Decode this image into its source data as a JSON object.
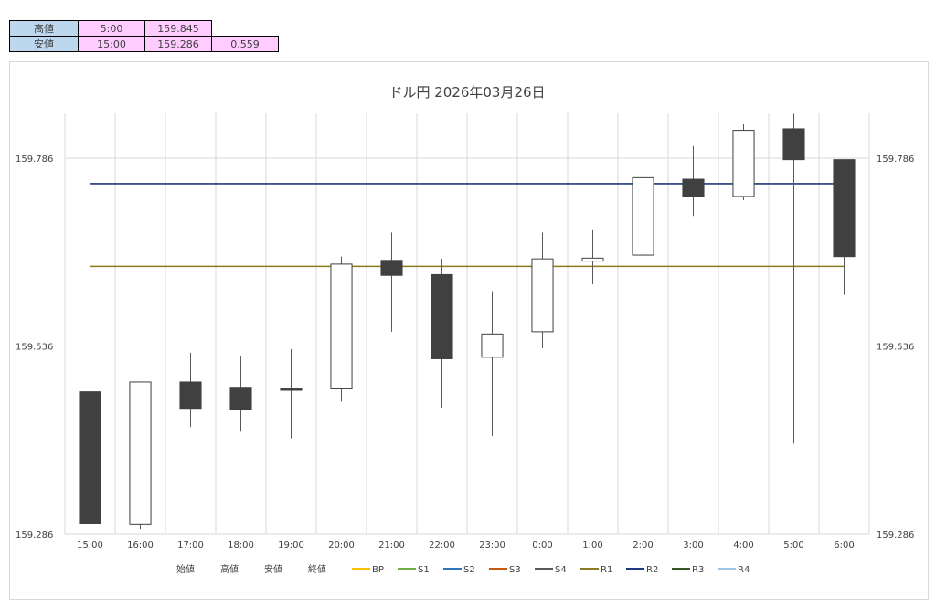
{
  "summary": {
    "high": {
      "label": "高値",
      "time": "5:00",
      "value": "159.845"
    },
    "low": {
      "label": "安値",
      "time": "15:00",
      "value": "159.286",
      "range": "0.559"
    }
  },
  "chart_data": {
    "type": "candlestick",
    "title": "ドル円 2026年03月26日",
    "ylim": [
      159.286,
      159.786
    ],
    "yticks": [
      "159.786",
      "159.536",
      "159.286"
    ],
    "ytick_values": [
      159.786,
      159.536,
      159.286
    ],
    "categories": [
      "15:00",
      "16:00",
      "17:00",
      "18:00",
      "19:00",
      "20:00",
      "21:00",
      "22:00",
      "23:00",
      "0:00",
      "1:00",
      "2:00",
      "3:00",
      "4:00",
      "5:00",
      "6:00"
    ],
    "open": [
      159.475,
      159.299,
      159.488,
      159.481,
      159.48,
      159.48,
      159.65,
      159.631,
      159.521,
      159.555,
      159.649,
      159.657,
      159.758,
      159.735,
      159.825,
      159.784
    ],
    "close": [
      159.3,
      159.488,
      159.453,
      159.452,
      159.477,
      159.645,
      159.63,
      159.519,
      159.552,
      159.652,
      159.653,
      159.76,
      159.735,
      159.823,
      159.784,
      159.655
    ],
    "high": [
      159.491,
      159.488,
      159.527,
      159.523,
      159.532,
      159.655,
      159.687,
      159.652,
      159.609,
      159.687,
      159.69,
      159.761,
      159.802,
      159.831,
      159.845,
      159.784
    ],
    "low": [
      159.286,
      159.292,
      159.428,
      159.422,
      159.413,
      159.462,
      159.555,
      159.454,
      159.416,
      159.533,
      159.618,
      159.629,
      159.709,
      159.73,
      159.406,
      159.604
    ],
    "levels": [
      {
        "name": "R1",
        "value": 159.642,
        "color": "#8b7b1e"
      },
      {
        "name": "R2",
        "value": 159.752,
        "color": "#1f3a7a"
      }
    ],
    "legend": [
      {
        "name": "始値",
        "type": "text"
      },
      {
        "name": "高値",
        "type": "text"
      },
      {
        "name": "安値",
        "type": "text"
      },
      {
        "name": "終値",
        "type": "text"
      },
      {
        "name": "BP",
        "type": "line",
        "color": "#ffc000"
      },
      {
        "name": "S1",
        "type": "line",
        "color": "#70ad47"
      },
      {
        "name": "S2",
        "type": "line",
        "color": "#2e75b6"
      },
      {
        "name": "S3",
        "type": "line",
        "color": "#c55a11"
      },
      {
        "name": "S4",
        "type": "line",
        "color": "#595959"
      },
      {
        "name": "R1",
        "type": "line",
        "color": "#8b7b1e"
      },
      {
        "name": "R2",
        "type": "line",
        "color": "#1f3a7a"
      },
      {
        "name": "R3",
        "type": "line",
        "color": "#375623"
      },
      {
        "name": "R4",
        "type": "line",
        "color": "#9dc3e6"
      }
    ],
    "colors": {
      "up_fill": "#ffffff",
      "down_fill": "#404040",
      "outline": "#404040",
      "wick": "#595959",
      "grid": "#d9d9d9"
    },
    "legend_position": "bottom"
  }
}
